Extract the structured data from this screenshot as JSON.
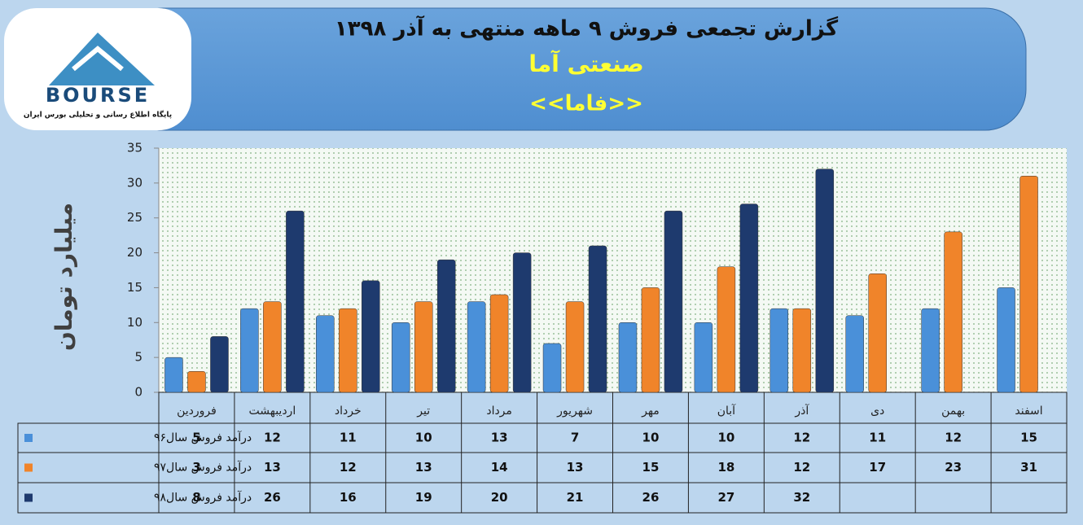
{
  "logo": {
    "brand": "BOURSE",
    "tagline": "پایگاه اطلاع رسانی و تحلیلی بورس ایران"
  },
  "chart_data": {
    "type": "bar",
    "title": "گزارش تجمعی فروش ۹ ماهه منتهی به آذر ۱۳۹۸",
    "subtitle": "صنعتی آما",
    "symbol": "<<فاما>>",
    "y_label": "میلیارد تومان",
    "categories": [
      "فروردین",
      "اردیبهشت",
      "خرداد",
      "تیر",
      "مرداد",
      "شهریور",
      "مهر",
      "آبان",
      "آذر",
      "دی",
      "بهمن",
      "اسفند"
    ],
    "series": [
      {
        "name": "درآمد فروش سال۹۶",
        "color": "#4a90d9",
        "values": [
          5,
          12,
          11,
          10,
          13,
          7,
          10,
          10,
          12,
          11,
          12,
          15
        ]
      },
      {
        "name": "درآمد فروش سال۹۷",
        "color": "#f0842a",
        "values": [
          3,
          13,
          12,
          13,
          14,
          13,
          15,
          18,
          12,
          17,
          23,
          31
        ]
      },
      {
        "name": "درآمد فروش سال۹۸",
        "color": "#1e3a6e",
        "values": [
          8,
          26,
          16,
          19,
          20,
          21,
          26,
          27,
          32,
          null,
          null,
          null
        ]
      }
    ],
    "ylim": [
      0,
      35
    ],
    "yticks": [
      0,
      5,
      10,
      15,
      20,
      25,
      30,
      35
    ],
    "grid": false,
    "data_table": true
  }
}
